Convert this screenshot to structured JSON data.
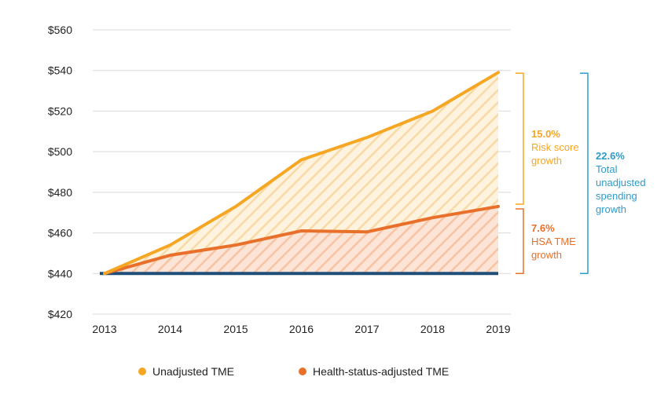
{
  "chart_data": {
    "type": "line",
    "x": [
      "2013",
      "2014",
      "2015",
      "2016",
      "2017",
      "2018",
      "2019"
    ],
    "ylim": [
      420,
      560
    ],
    "yticks": [
      420,
      440,
      460,
      480,
      500,
      520,
      540,
      560
    ],
    "ytick_labels": [
      "$420",
      "$440",
      "$460",
      "$480",
      "$500",
      "$520",
      "$540",
      "$560"
    ],
    "grid": true,
    "legend_position": "bottom",
    "baseline": 440,
    "series": [
      {
        "name": "Unadjusted TME",
        "color": "#F5A623",
        "values": [
          440,
          454,
          473,
          496,
          507,
          520,
          539
        ]
      },
      {
        "name": "Health-status-adjusted TME",
        "color": "#E8702A",
        "values": [
          440,
          449,
          454,
          461,
          460.5,
          467.5,
          473
        ]
      }
    ],
    "annotations": {
      "risk": {
        "value": "15.0%",
        "line1": "Risk score",
        "line2": "growth",
        "color": "#F5A623"
      },
      "hsa": {
        "value": "7.6%",
        "line1": "HSA TME",
        "line2": "growth",
        "color": "#E8702A"
      },
      "total": {
        "value": "22.6%",
        "line1": "Total",
        "line2": "unadjusted",
        "line3": "spending",
        "line4": "growth",
        "color": "#2E9BCB"
      }
    },
    "baseline_color": "#1F4E79"
  }
}
